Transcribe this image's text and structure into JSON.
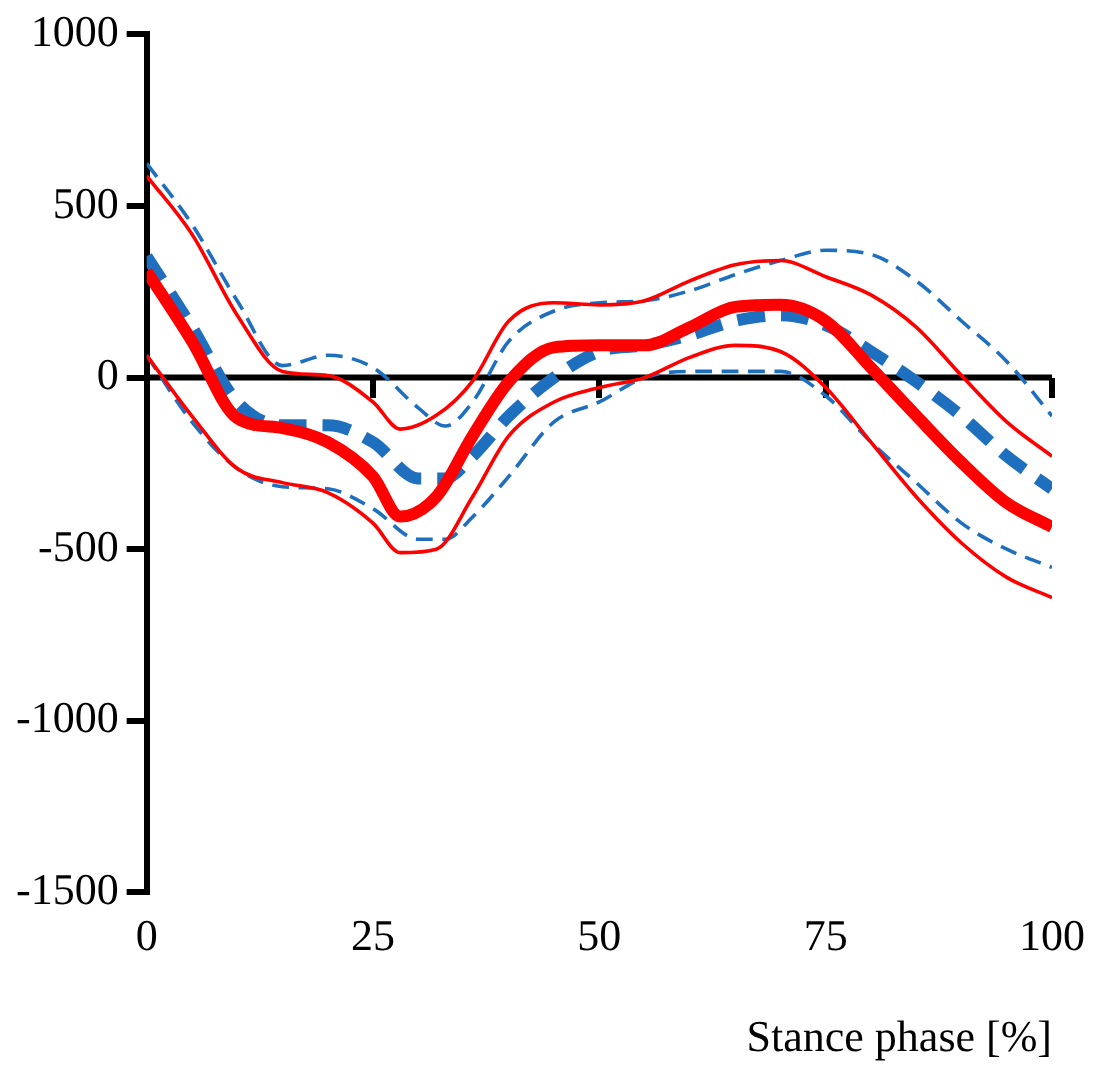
{
  "chart_data": {
    "type": "line",
    "xlabel": "Stance phase [%]",
    "xlim": [
      0,
      100
    ],
    "xticks": [
      0,
      25,
      50,
      75,
      100
    ],
    "ylim": [
      -1500,
      1000
    ],
    "yticks": [
      -1500,
      -1000,
      -500,
      0,
      500,
      1000
    ],
    "grid": false,
    "legend": false,
    "ref_lines": [
      {
        "axis": "y",
        "value": 0,
        "color": "#000000"
      }
    ],
    "marker": "none",
    "series": [
      {
        "color": "#ff0000",
        "line_style": "solid",
        "x": [
          0,
          5,
          10,
          15,
          20,
          25,
          28,
          32,
          36,
          40,
          45,
          50,
          55,
          60,
          65,
          70,
          75,
          80,
          85,
          90,
          95,
          100
        ],
        "values": [
          310,
          106,
          -118,
          -147,
          -188,
          -288,
          -405,
          -347,
          -170,
          -12,
          88,
          94,
          94,
          147,
          206,
          212,
          165,
          29,
          -111,
          -247,
          -365,
          -435
        ]
      },
      {
        "color": "#1f6fbf",
        "line_style": "dashed",
        "x": [
          0,
          5,
          10,
          15,
          20,
          25,
          30,
          33,
          36,
          40,
          45,
          50,
          55,
          60,
          65,
          70,
          75,
          80,
          85,
          90,
          95,
          100
        ],
        "values": [
          353,
          147,
          -71,
          -139,
          -139,
          -188,
          -294,
          -294,
          -229,
          -112,
          0,
          76,
          94,
          124,
          165,
          182,
          153,
          76,
          -12,
          -112,
          -229,
          -324
        ]
      },
      {
        "color": "#ff0000",
        "line_style": "solid",
        "x": [
          0,
          5,
          10,
          15,
          20,
          25,
          28,
          32,
          36,
          40,
          45,
          50,
          55,
          60,
          65,
          70,
          75,
          80,
          85,
          90,
          95,
          100
        ],
        "values": [
          588,
          418,
          182,
          18,
          6,
          -71,
          -150,
          -110,
          -10,
          165,
          218,
          212,
          224,
          282,
          329,
          341,
          294,
          241,
          147,
          6,
          -129,
          -229
        ]
      },
      {
        "color": "#ff0000",
        "line_style": "solid",
        "x": [
          0,
          5,
          10,
          15,
          20,
          25,
          28,
          32,
          36,
          40,
          45,
          50,
          55,
          60,
          65,
          70,
          75,
          80,
          85,
          90,
          95,
          100
        ],
        "values": [
          65,
          -112,
          -265,
          -306,
          -335,
          -424,
          -510,
          -500,
          -347,
          -170,
          -71,
          -29,
          0,
          59,
          94,
          76,
          -29,
          -188,
          -347,
          -482,
          -582,
          -641
        ]
      },
      {
        "color": "#1f6fbf",
        "line_style": "dashed",
        "x": [
          0,
          5,
          10,
          15,
          20,
          25,
          30,
          33,
          36,
          40,
          45,
          50,
          55,
          60,
          65,
          70,
          75,
          80,
          85,
          90,
          95,
          100
        ],
        "values": [
          624,
          447,
          224,
          35,
          65,
          29,
          -88,
          -141,
          -71,
          106,
          194,
          218,
          224,
          253,
          300,
          341,
          371,
          359,
          282,
          165,
          47,
          -112
        ]
      },
      {
        "color": "#1f6fbf",
        "line_style": "dashed",
        "x": [
          0,
          5,
          10,
          15,
          20,
          25,
          30,
          33,
          36,
          40,
          45,
          50,
          55,
          60,
          65,
          70,
          75,
          80,
          85,
          90,
          95,
          100
        ],
        "values": [
          65,
          -129,
          -265,
          -318,
          -324,
          -382,
          -471,
          -471,
          -406,
          -288,
          -129,
          -71,
          0,
          18,
          18,
          18,
          -53,
          -188,
          -306,
          -424,
          -500,
          -553
        ]
      }
    ]
  }
}
